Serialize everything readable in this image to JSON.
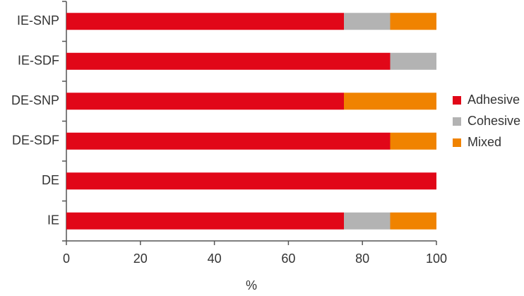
{
  "chart_data": {
    "type": "stacked_barh",
    "categories": [
      "IE-SNP",
      "IE-SDF",
      "DE-SNP",
      "DE-SDF",
      "DE",
      "IE"
    ],
    "series": [
      {
        "name": "Adhesive",
        "color": "#e10718",
        "values": [
          75,
          87.5,
          75,
          87.5,
          100,
          75
        ]
      },
      {
        "name": "Cohesive",
        "color": "#b3b3b3",
        "values": [
          12.5,
          12.5,
          0,
          0,
          0,
          12.5
        ]
      },
      {
        "name": "Mixed",
        "color": "#f08300",
        "values": [
          12.5,
          0,
          25,
          12.5,
          0,
          12.5
        ]
      }
    ],
    "xlabel": "%",
    "xlim": [
      0,
      100
    ],
    "xticks": [
      0,
      20,
      40,
      60,
      80,
      100
    ],
    "legend": "right"
  }
}
